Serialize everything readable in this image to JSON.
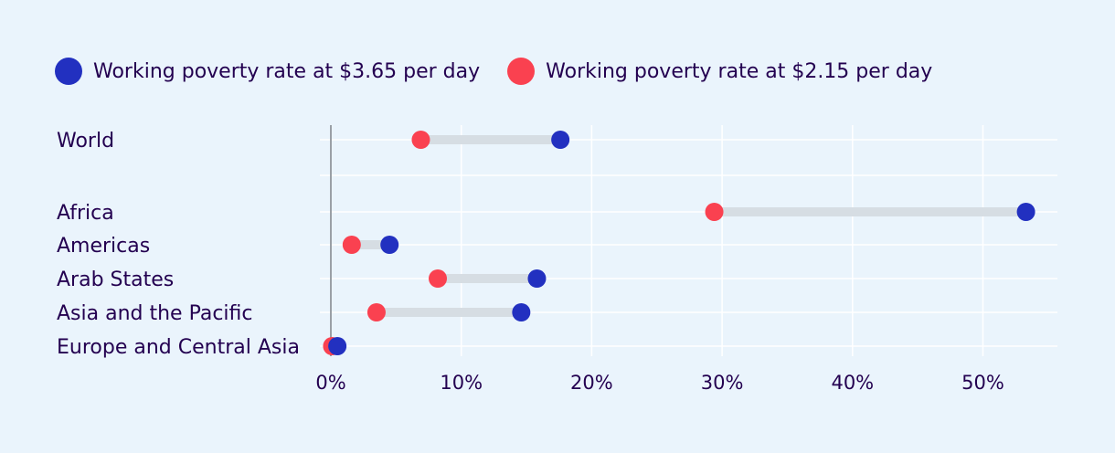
{
  "chart_data": {
    "type": "dumbbell",
    "title": "",
    "xlabel": "",
    "ylabel": "",
    "xlim": [
      0,
      56
    ],
    "x_ticks": [
      0,
      10,
      20,
      30,
      40,
      50
    ],
    "x_tick_labels": [
      "0%",
      "10%",
      "20%",
      "30%",
      "40%",
      "50%"
    ],
    "grid": true,
    "legend_position": "top-left",
    "categories": [
      "World",
      "Africa",
      "Americas",
      "Arab States",
      "Asia and the Pacific",
      "Europe and Central Asia"
    ],
    "series": [
      {
        "name": "Working poverty rate at $3.65 per day",
        "color": "#2230c0",
        "values": [
          17.6,
          53.3,
          4.5,
          15.8,
          14.6,
          0.5
        ]
      },
      {
        "name": "Working poverty rate at $2.15 per day",
        "color": "#fa4150",
        "values": [
          6.9,
          29.4,
          1.6,
          8.2,
          3.5,
          0.1
        ]
      }
    ]
  },
  "colors": {
    "background": "#eaf4fc",
    "connector": "#d6dde3",
    "gridline": "#ffffff",
    "axis_line": "#9aa0a6",
    "text": "#230050"
  }
}
